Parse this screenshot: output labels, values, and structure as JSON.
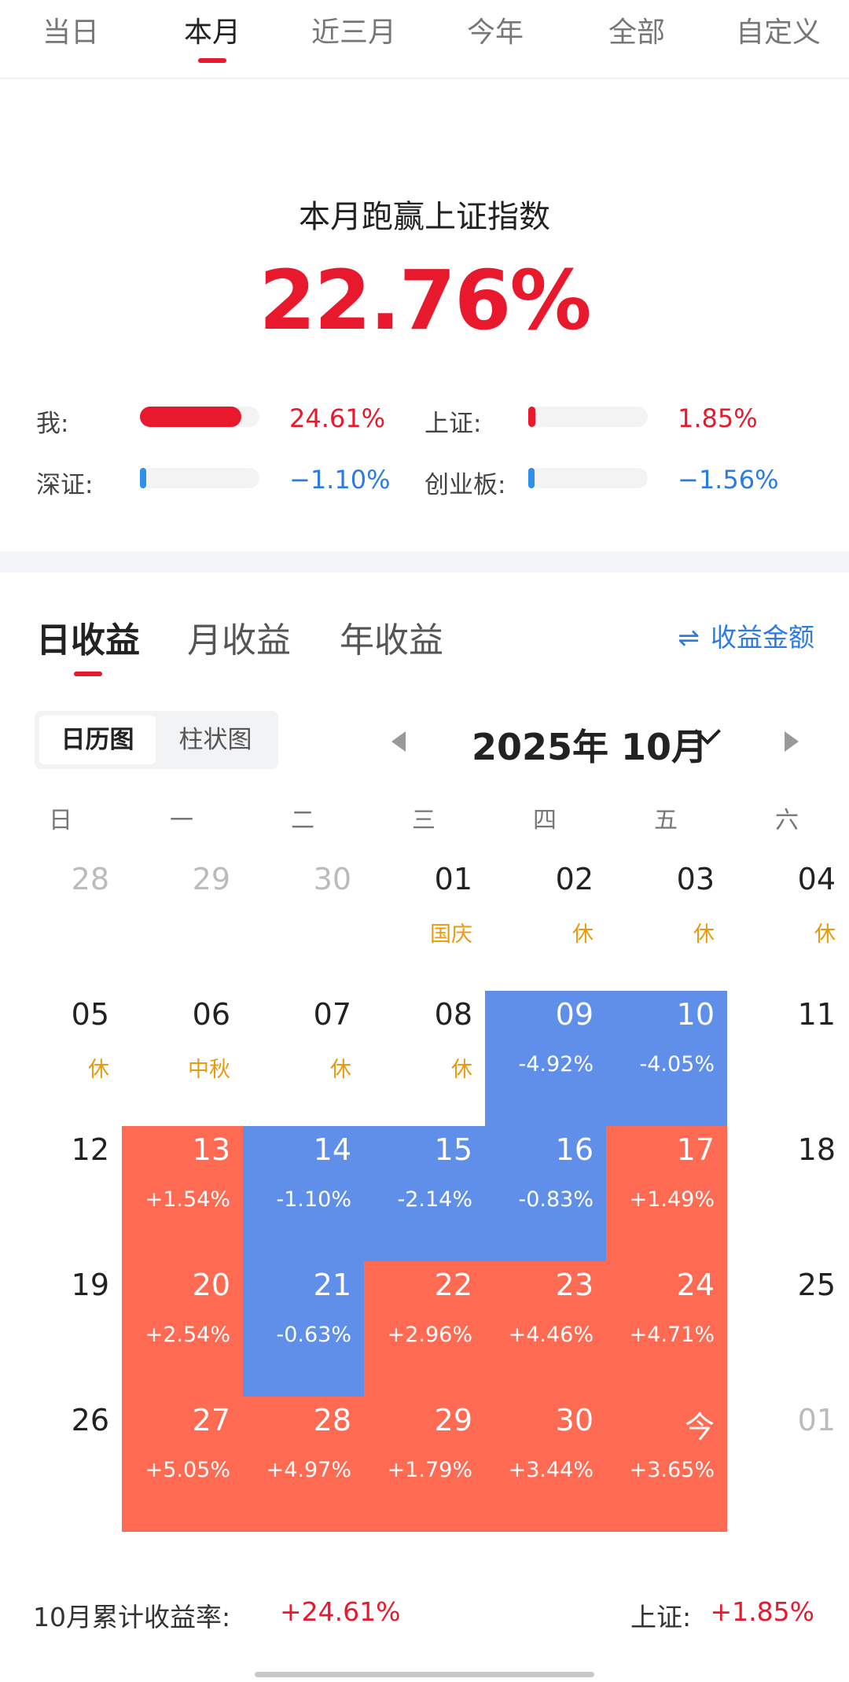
{
  "period_tabs": [
    {
      "label": "当日",
      "active": false
    },
    {
      "label": "本月",
      "active": true
    },
    {
      "label": "近三月",
      "active": false
    },
    {
      "label": "今年",
      "active": false
    },
    {
      "label": "全部",
      "active": false
    },
    {
      "label": "自定义",
      "active": false
    }
  ],
  "summary": {
    "title": "本月跑赢上证指数",
    "value": "22.76%",
    "comparisons": [
      {
        "label": "我:",
        "value": "24.61%",
        "fill": 0.85,
        "color": "red"
      },
      {
        "label": "上证:",
        "value": "1.85%",
        "fill": 0.06,
        "color": "red"
      },
      {
        "label": "深证:",
        "value": "−1.10%",
        "fill": 0.04,
        "color": "blue"
      },
      {
        "label": "创业板:",
        "value": "−1.56%",
        "fill": 0.05,
        "color": "blue"
      }
    ]
  },
  "earnings_tabs": [
    {
      "label": "日收益",
      "active": true
    },
    {
      "label": "月收益",
      "active": false
    },
    {
      "label": "年收益",
      "active": false
    }
  ],
  "amount_toggle": {
    "icon": "swap-icon",
    "label": "收益金额"
  },
  "view_toggle": [
    {
      "label": "日历图",
      "active": true
    },
    {
      "label": "柱状图",
      "active": false
    }
  ],
  "month_label": "2025年 10月",
  "weekdays": [
    "日",
    "一",
    "二",
    "三",
    "四",
    "五",
    "六"
  ],
  "calendar": [
    [
      {
        "day": "28",
        "kind": "other",
        "sub": ""
      },
      {
        "day": "29",
        "kind": "other",
        "sub": ""
      },
      {
        "day": "30",
        "kind": "other",
        "sub": ""
      },
      {
        "day": "01",
        "kind": "hol",
        "sub": "国庆"
      },
      {
        "day": "02",
        "kind": "hol",
        "sub": "休"
      },
      {
        "day": "03",
        "kind": "hol",
        "sub": "休"
      },
      {
        "day": "04",
        "kind": "hol",
        "sub": "休"
      }
    ],
    [
      {
        "day": "05",
        "kind": "hol",
        "sub": "休"
      },
      {
        "day": "06",
        "kind": "hol",
        "sub": "中秋"
      },
      {
        "day": "07",
        "kind": "hol",
        "sub": "休"
      },
      {
        "day": "08",
        "kind": "hol",
        "sub": "休"
      },
      {
        "day": "09",
        "kind": "down",
        "sub": "-4.92%"
      },
      {
        "day": "10",
        "kind": "down",
        "sub": "-4.05%"
      },
      {
        "day": "11",
        "kind": "plain",
        "sub": ""
      }
    ],
    [
      {
        "day": "12",
        "kind": "plain",
        "sub": ""
      },
      {
        "day": "13",
        "kind": "up",
        "sub": "+1.54%"
      },
      {
        "day": "14",
        "kind": "down",
        "sub": "-1.10%"
      },
      {
        "day": "15",
        "kind": "down",
        "sub": "-2.14%"
      },
      {
        "day": "16",
        "kind": "down",
        "sub": "-0.83%"
      },
      {
        "day": "17",
        "kind": "up",
        "sub": "+1.49%"
      },
      {
        "day": "18",
        "kind": "plain",
        "sub": ""
      }
    ],
    [
      {
        "day": "19",
        "kind": "plain",
        "sub": ""
      },
      {
        "day": "20",
        "kind": "up",
        "sub": "+2.54%"
      },
      {
        "day": "21",
        "kind": "down",
        "sub": "-0.63%"
      },
      {
        "day": "22",
        "kind": "up",
        "sub": "+2.96%"
      },
      {
        "day": "23",
        "kind": "up",
        "sub": "+4.46%"
      },
      {
        "day": "24",
        "kind": "up",
        "sub": "+4.71%"
      },
      {
        "day": "25",
        "kind": "plain",
        "sub": ""
      }
    ],
    [
      {
        "day": "26",
        "kind": "plain",
        "sub": ""
      },
      {
        "day": "27",
        "kind": "up",
        "sub": "+5.05%"
      },
      {
        "day": "28",
        "kind": "up",
        "sub": "+4.97%"
      },
      {
        "day": "29",
        "kind": "up",
        "sub": "+1.79%"
      },
      {
        "day": "30",
        "kind": "up",
        "sub": "+3.44%"
      },
      {
        "day": "今",
        "kind": "up",
        "sub": "+3.65%"
      },
      {
        "day": "01",
        "kind": "other",
        "sub": ""
      }
    ]
  ],
  "footer": {
    "label": "10月累计收益率:",
    "value": "+24.61%",
    "sh_label": "上证:",
    "sh_value": "+1.85%"
  },
  "colors": {
    "accent_red": "#e8192c",
    "accent_blue": "#2b7be3",
    "gain_cell": "#ff6a52",
    "loss_cell": "#5f8fe8",
    "holiday_text": "#e89a10"
  }
}
